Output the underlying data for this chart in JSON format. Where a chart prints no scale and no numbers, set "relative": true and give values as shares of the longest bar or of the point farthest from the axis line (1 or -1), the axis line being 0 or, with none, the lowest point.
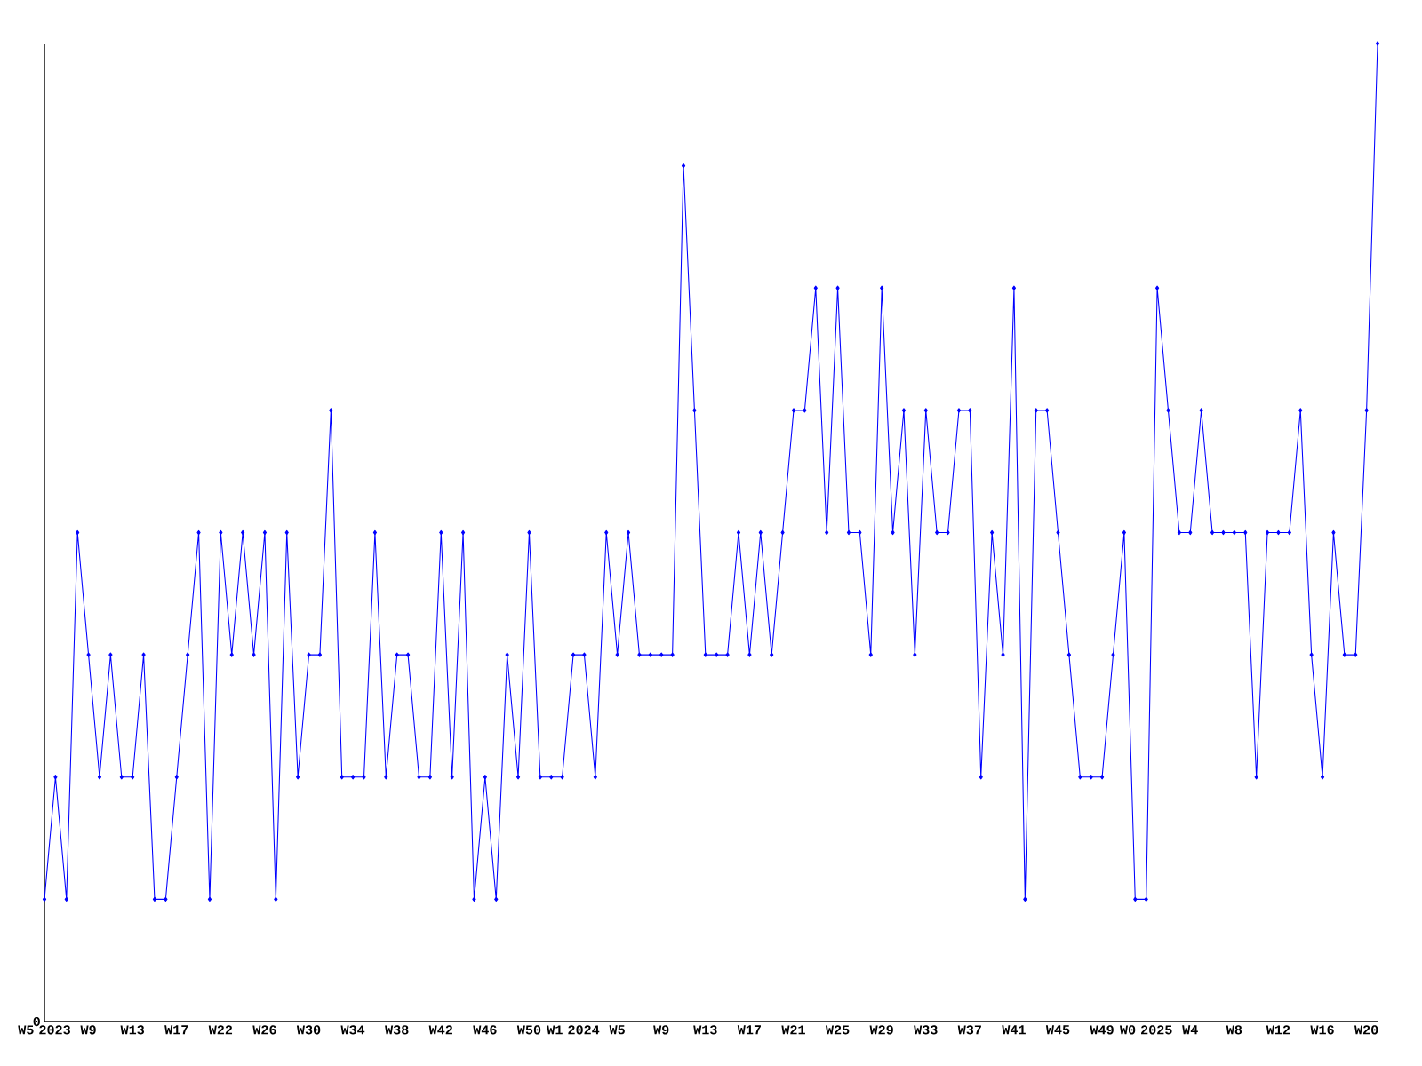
{
  "chart_data": {
    "type": "line",
    "relative": true,
    "color": "#0000ff",
    "marker": "diamond",
    "grid": false,
    "categories": [
      "W5 2023",
      null,
      null,
      null,
      "W9",
      null,
      null,
      null,
      "W13",
      null,
      null,
      null,
      "W17",
      null,
      null,
      null,
      "W22",
      null,
      null,
      null,
      "W26",
      null,
      null,
      null,
      "W30",
      null,
      null,
      null,
      "W34",
      null,
      null,
      null,
      "W38",
      null,
      null,
      null,
      "W42",
      null,
      null,
      null,
      "W46",
      null,
      null,
      null,
      "W50",
      null,
      null,
      null,
      "W1 2024",
      null,
      null,
      null,
      "W5",
      null,
      null,
      null,
      "W9",
      null,
      null,
      null,
      "W13",
      null,
      null,
      null,
      "W17",
      null,
      null,
      null,
      "W21",
      null,
      null,
      null,
      "W25",
      null,
      null,
      null,
      "W29",
      null,
      null,
      null,
      "W33",
      null,
      null,
      null,
      "W37",
      null,
      null,
      null,
      "W41",
      null,
      null,
      null,
      "W45",
      null,
      null,
      null,
      "W49",
      null,
      null,
      null,
      "W0 2025",
      null,
      null,
      null,
      "W4",
      null,
      null,
      null,
      "W8",
      null,
      null,
      null,
      "W12",
      null,
      null,
      null,
      "W16",
      null,
      null,
      null,
      "W20",
      null
    ],
    "values": [
      0.125,
      0.25,
      0.125,
      0.5,
      0.375,
      0.25,
      0.375,
      0.25,
      0.25,
      0.375,
      0.125,
      0.125,
      0.25,
      0.375,
      0.5,
      0.125,
      0.5,
      0.375,
      0.5,
      0.375,
      0.5,
      0.125,
      0.5,
      0.25,
      0.375,
      0.375,
      0.625,
      0.25,
      0.25,
      0.25,
      0.5,
      0.25,
      0.375,
      0.375,
      0.25,
      0.25,
      0.5,
      0.25,
      0.5,
      0.125,
      0.25,
      0.125,
      0.375,
      0.25,
      0.5,
      0.25,
      0.25,
      0.25,
      0.375,
      0.375,
      0.25,
      0.5,
      0.375,
      0.5,
      0.375,
      0.375,
      0.375,
      0.375,
      0.875,
      0.625,
      0.375,
      0.375,
      0.375,
      0.5,
      0.375,
      0.5,
      0.375,
      0.5,
      0.625,
      0.625,
      0.75,
      0.5,
      0.75,
      0.5,
      0.5,
      0.375,
      0.75,
      0.5,
      0.625,
      0.375,
      0.625,
      0.5,
      0.5,
      0.625,
      0.625,
      0.25,
      0.5,
      0.375,
      0.75,
      0.125,
      0.625,
      0.625,
      0.5,
      0.375,
      0.25,
      0.25,
      0.25,
      0.375,
      0.5,
      0.125,
      0.125,
      0.75,
      0.625,
      0.5,
      0.5,
      0.625,
      0.5,
      0.5,
      0.5,
      0.5,
      0.25,
      0.5,
      0.5,
      0.5,
      0.625,
      0.375,
      0.25,
      0.5,
      0.375,
      0.375,
      0.625,
      1
    ],
    "annotations": [
      "0"
    ]
  }
}
